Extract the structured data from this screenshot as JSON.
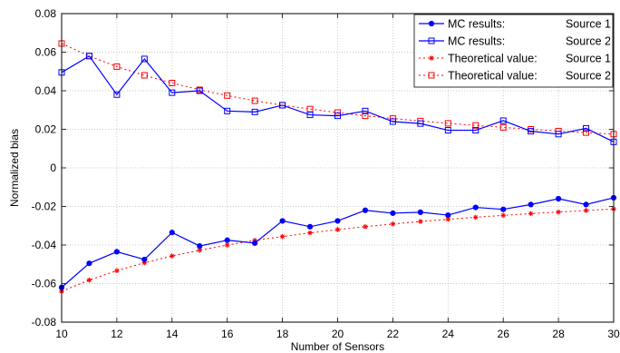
{
  "chart_data": {
    "type": "line",
    "xlabel": "Number of Sensors",
    "ylabel": "Normalized bias",
    "xlim": [
      10,
      30
    ],
    "ylim": [
      -0.08,
      0.08
    ],
    "xticks": [
      10,
      12,
      14,
      16,
      18,
      20,
      22,
      24,
      26,
      28,
      30
    ],
    "yticks": [
      -0.08,
      -0.06,
      -0.04,
      -0.02,
      0,
      0.02,
      0.04,
      0.06,
      0.08
    ],
    "xtick_labels": [
      "10",
      "12",
      "14",
      "16",
      "18",
      "20",
      "22",
      "24",
      "26",
      "28",
      "30"
    ],
    "ytick_labels": [
      "-0.08",
      "-0.06",
      "-0.04",
      "-0.02",
      "0",
      "0.02",
      "0.04",
      "0.06",
      "0.08"
    ],
    "grid": true,
    "legend_position": "top-right",
    "x": [
      10,
      11,
      12,
      13,
      14,
      15,
      16,
      17,
      18,
      19,
      20,
      21,
      22,
      23,
      24,
      25,
      26,
      27,
      28,
      29,
      30
    ],
    "series": [
      {
        "name": "MC results:        Source 1",
        "color": "#0000ff",
        "line": "solid",
        "marker": "dot",
        "values": [
          -0.062,
          -0.0495,
          -0.0435,
          -0.0475,
          -0.0335,
          -0.0405,
          -0.0375,
          -0.039,
          -0.0275,
          -0.0305,
          -0.0275,
          -0.022,
          -0.0235,
          -0.023,
          -0.0245,
          -0.0205,
          -0.0215,
          -0.019,
          -0.016,
          -0.019,
          -0.0155
        ]
      },
      {
        "name": "MC results:        Source 2",
        "color": "#0000ff",
        "line": "solid",
        "marker": "square",
        "values": [
          0.0495,
          0.058,
          0.038,
          0.0565,
          0.039,
          0.04,
          0.0295,
          0.029,
          0.0325,
          0.0275,
          0.027,
          0.0295,
          0.024,
          0.023,
          0.0195,
          0.0195,
          0.0245,
          0.019,
          0.0175,
          0.0205,
          0.0135
        ]
      },
      {
        "name": "Theoretical value: Source 1",
        "color": "#ff0000",
        "line": "dotted",
        "marker": "star",
        "values": [
          -0.064,
          -0.0582,
          -0.0533,
          -0.0492,
          -0.0457,
          -0.0427,
          -0.04,
          -0.0376,
          -0.0356,
          -0.0337,
          -0.032,
          -0.0305,
          -0.0291,
          -0.0278,
          -0.0267,
          -0.0256,
          -0.0246,
          -0.0237,
          -0.0229,
          -0.0221,
          -0.0213
        ]
      },
      {
        "name": "Theoretical value: Source 2",
        "color": "#ff0000",
        "line": "dotted",
        "marker": "square",
        "values": [
          0.0645,
          0.058,
          0.0525,
          0.048,
          0.044,
          0.0405,
          0.0375,
          0.0348,
          0.0325,
          0.0305,
          0.0287,
          0.027,
          0.0256,
          0.0243,
          0.0231,
          0.022,
          0.021,
          0.02,
          0.0191,
          0.0183,
          0.0175
        ]
      }
    ]
  },
  "legend": {
    "entries": [
      {
        "label": "MC results:",
        "source": "Source 1"
      },
      {
        "label": "MC results:",
        "source": "Source 2"
      },
      {
        "label": "Theoretical value:",
        "source": "Source 1"
      },
      {
        "label": "Theoretical value:",
        "source": "Source 2"
      }
    ]
  }
}
